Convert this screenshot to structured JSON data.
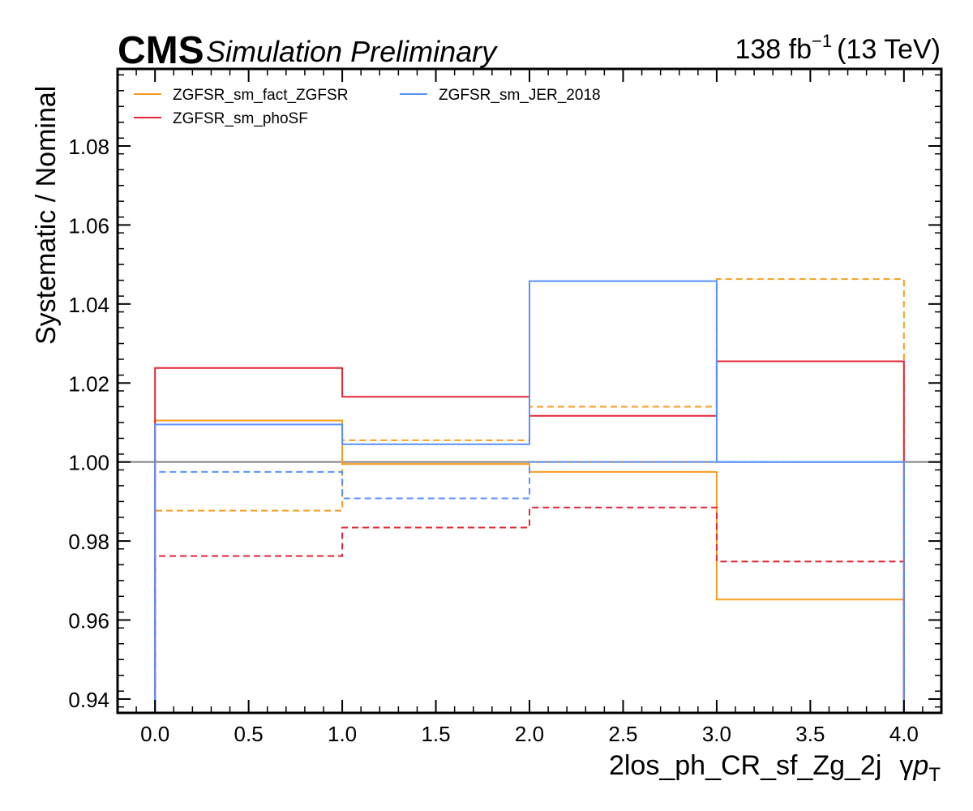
{
  "header": {
    "cms": "CMS",
    "sub": "Simulation Preliminary",
    "lumi_value": "138 fb",
    "lumi_exp": "−1",
    "lumi_energy": "(13 TeV)"
  },
  "chart_data": {
    "type": "line",
    "drawstyle": "steps",
    "xlabel_main": "2los_ph_CR_sf_Zg_2j",
    "xlabel_var": "γ",
    "xlabel_p": "p",
    "xlabel_sub": "T",
    "ylabel": "Systematic / Nominal",
    "xlim": [
      -0.2,
      4.2
    ],
    "ylim": [
      0.9365,
      1.0995
    ],
    "xticks": [
      0.0,
      0.5,
      1.0,
      1.5,
      2.0,
      2.5,
      3.0,
      3.5,
      4.0
    ],
    "xtick_labels": [
      "0.0",
      "0.5",
      "1.0",
      "1.5",
      "2.0",
      "2.5",
      "3.0",
      "3.5",
      "4.0"
    ],
    "yticks": [
      0.94,
      0.96,
      0.98,
      1.0,
      1.02,
      1.04,
      1.06,
      1.08
    ],
    "ytick_labels": [
      "0.94",
      "0.96",
      "0.98",
      "1.00",
      "1.02",
      "1.04",
      "1.06",
      "1.08"
    ],
    "bin_edges": [
      0,
      1,
      2,
      3,
      4
    ],
    "reference_line": 1.0,
    "legend_position": "top-left",
    "series": [
      {
        "name": "ZGFSR_sm_fact_ZGFSR",
        "color": "#f89c20",
        "up": [
          1.0105,
          0.9995,
          0.9975,
          0.9652
        ],
        "down": [
          0.9877,
          1.0055,
          1.014,
          1.0463
        ]
      },
      {
        "name": "ZGFSR_sm_phoSF",
        "color": "#e42536",
        "up": [
          1.0238,
          1.0165,
          1.0117,
          1.0255
        ],
        "down": [
          0.9762,
          0.9834,
          0.9885,
          0.9748
        ]
      },
      {
        "name": "ZGFSR_sm_JER_2018",
        "color": "#5790fc",
        "up": [
          1.0095,
          1.0045,
          1.0458,
          1.0
        ],
        "down": [
          0.9975,
          0.9908,
          1.0,
          1.0
        ]
      }
    ]
  }
}
